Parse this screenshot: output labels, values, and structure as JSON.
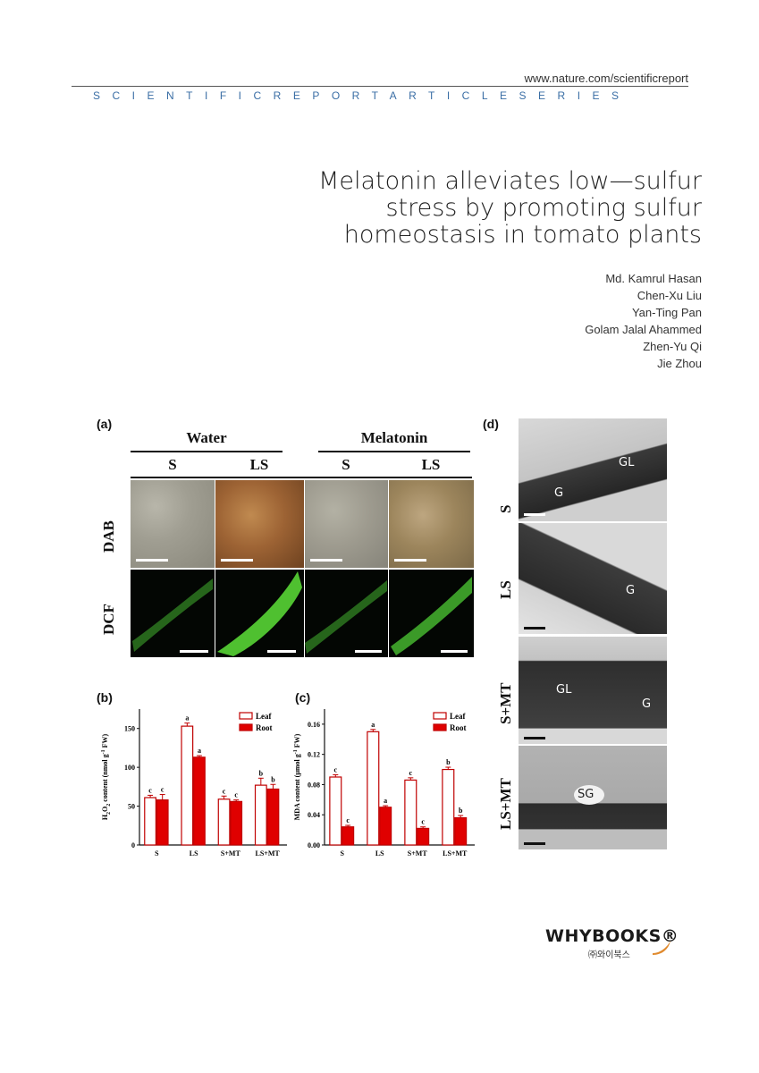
{
  "header": {
    "url": "www.nature.com/scientificreport",
    "series": "SCIENTIFICREPORTARTICLESERIES"
  },
  "title_lines": [
    "Melatonin alleviates low—sulfur",
    "stress by promoting sulfur",
    "homeostasis in tomato plants"
  ],
  "authors": [
    "Md. Kamrul Hasan",
    "Chen-Xu Liu",
    "Yan-Ting Pan",
    "Golam Jalal Ahammed",
    "Zhen-Yu Qi",
    "Jie Zhou"
  ],
  "figure": {
    "panel_a": {
      "label": "(a)",
      "groups": [
        "Water",
        "Melatonin"
      ],
      "conditions": [
        "S",
        "LS",
        "S",
        "LS"
      ],
      "rows": [
        "DAB",
        "DCF"
      ]
    },
    "panel_d": {
      "label": "(d)",
      "rows": [
        "S",
        "LS",
        "S+MT",
        "LS+MT"
      ],
      "annotations": [
        [
          "GL",
          "G"
        ],
        [
          "G"
        ],
        [
          "GL",
          "G"
        ],
        [
          "SG"
        ]
      ]
    }
  },
  "chart_data": [
    {
      "type": "bar",
      "panel": "(b)",
      "categories": [
        "S",
        "LS",
        "S+MT",
        "LS+MT"
      ],
      "ylabel": "H2O2 content (nmol g⁻¹ FW)",
      "ylabel_main": "H",
      "ylabel_sub1": "2",
      "ylabel_mid": "O",
      "ylabel_sub2": "2",
      "ylabel_rest": " content (nmol g",
      "ylabel_sup": "-1",
      "ylabel_end": " FW)",
      "ylim": [
        0,
        175
      ],
      "yticks": [
        "0",
        "50",
        "100",
        "150"
      ],
      "ytick_values": [
        0,
        50,
        100,
        150
      ],
      "series": [
        {
          "name": "Leaf",
          "color": "#ffffff",
          "stroke": "#c00000",
          "values": [
            61,
            153,
            59,
            77
          ],
          "errors": [
            3,
            4,
            4,
            9
          ],
          "letters": [
            "c",
            "a",
            "c",
            "b"
          ]
        },
        {
          "name": "Root",
          "color": "#e00000",
          "stroke": "#c00000",
          "values": [
            58,
            113,
            56,
            72
          ],
          "errors": [
            7,
            2,
            2,
            6
          ],
          "letters": [
            "c",
            "a",
            "c",
            "b"
          ]
        }
      ]
    },
    {
      "type": "bar",
      "panel": "(c)",
      "categories": [
        "S",
        "LS",
        "S+MT",
        "LS+MT"
      ],
      "ylabel": "MDA content (μmol g⁻¹ FW)",
      "ylabel_rest": "MDA content (μmol g",
      "ylabel_sup": "-1",
      "ylabel_end": " FW)",
      "ylim": [
        0,
        0.18
      ],
      "yticks": [
        "0.00",
        "0.04",
        "0.08",
        "0.12",
        "0.16"
      ],
      "ytick_values": [
        0,
        0.04,
        0.08,
        0.12,
        0.16
      ],
      "series": [
        {
          "name": "Leaf",
          "color": "#ffffff",
          "stroke": "#c00000",
          "values": [
            0.09,
            0.15,
            0.086,
            0.1
          ],
          "errors": [
            0.003,
            0.003,
            0.003,
            0.003
          ],
          "letters": [
            "c",
            "a",
            "c",
            "b"
          ]
        },
        {
          "name": "Root",
          "color": "#e00000",
          "stroke": "#c00000",
          "values": [
            0.024,
            0.05,
            0.022,
            0.036
          ],
          "errors": [
            0.002,
            0.002,
            0.002,
            0.003
          ],
          "letters": [
            "c",
            "a",
            "c",
            "b"
          ]
        }
      ]
    }
  ],
  "publisher": {
    "logo": "WHYBOOKS®",
    "sub": "㈜와이북스"
  }
}
